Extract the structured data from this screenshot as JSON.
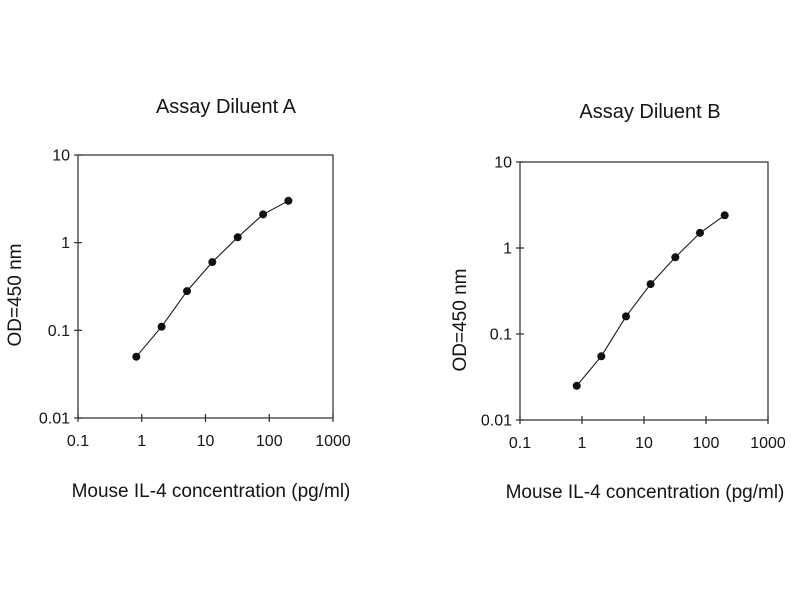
{
  "page": {
    "background_color": "#ffffff",
    "text_color": "#141414",
    "line_color": "#1a1a1a"
  },
  "chart_data": [
    {
      "type": "line",
      "title": "Assay Diluent A",
      "xlabel": "Mouse IL-4 concentration (pg/ml)",
      "ylabel": "OD=450 nm",
      "x_scale": "log",
      "y_scale": "log",
      "xlim": [
        0.1,
        1000
      ],
      "ylim": [
        0.01,
        10
      ],
      "x_tick_labels": [
        "0.1",
        "1",
        "10",
        "100",
        "1000"
      ],
      "y_tick_labels": [
        "0.01",
        "0.1",
        "1",
        "10"
      ],
      "grid": false,
      "legend": false,
      "series": [
        {
          "name": "standard-curve",
          "marker": "circle",
          "color": "#1a1a1a",
          "x": [
            0.82,
            2.05,
            5.12,
            12.8,
            32,
            80,
            200
          ],
          "y": [
            0.05,
            0.11,
            0.28,
            0.6,
            1.15,
            2.1,
            3.0
          ]
        }
      ]
    },
    {
      "type": "line",
      "title": "Assay Diluent B",
      "xlabel": "Mouse IL-4 concentration (pg/ml)",
      "ylabel": "OD=450 nm",
      "x_scale": "log",
      "y_scale": "log",
      "xlim": [
        0.1,
        1000
      ],
      "ylim": [
        0.01,
        10
      ],
      "x_tick_labels": [
        "0.1",
        "1",
        "10",
        "100",
        "1000"
      ],
      "y_tick_labels": [
        "0.01",
        "0.1",
        "1",
        "10"
      ],
      "grid": false,
      "legend": false,
      "series": [
        {
          "name": "standard-curve",
          "marker": "circle",
          "color": "#1a1a1a",
          "x": [
            0.82,
            2.05,
            5.12,
            12.8,
            32,
            80,
            200
          ],
          "y": [
            0.025,
            0.055,
            0.16,
            0.38,
            0.78,
            1.5,
            2.4
          ]
        }
      ]
    }
  ]
}
